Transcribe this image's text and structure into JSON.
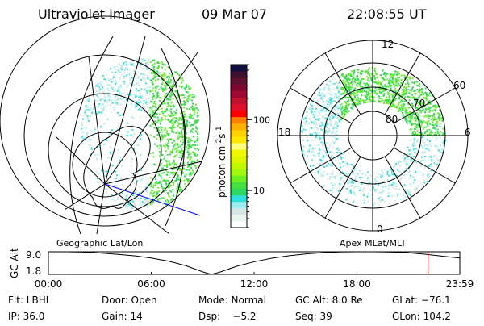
{
  "header": {
    "instrument": "Ultraviolet Imager",
    "date": "09 Mar 07",
    "time": "22:08:55 UT"
  },
  "colorbar": {
    "label_main": "photon cm",
    "label_exp1": "-2",
    "label_s": "s",
    "label_exp2": "-1",
    "scale": "log",
    "range": [
      3,
      600
    ],
    "ticks": [
      "10",
      "100"
    ],
    "tick_values": [
      10,
      100
    ],
    "colors": [
      "#ffffff",
      "#eaf4ee",
      "#d6e6e4",
      "#9ceef0",
      "#2ee0d8",
      "#2ed860",
      "#44e040",
      "#6cf020",
      "#a0f810",
      "#c0f800",
      "#e0f400",
      "#f0f800",
      "#ffff80",
      "#ffe800",
      "#ffd000",
      "#ffb000",
      "#ff8000",
      "#ff0000",
      "#e0102a",
      "#c01030",
      "#a00830",
      "#800830",
      "#601030",
      "#401030",
      "#101040"
    ]
  },
  "left_map": {
    "projection": "Geographic Lat/Lon",
    "track_color": "#0000ff"
  },
  "right_map": {
    "projection": "Apex MLat/MLT",
    "mlt_labels": {
      "top": "12",
      "bottom": "0",
      "left": "18",
      "right": "6"
    },
    "lat_labels": [
      "60",
      "70",
      "80"
    ]
  },
  "chart_data": {
    "type": "line",
    "title": "",
    "ylabel": "GC Alt",
    "yticks": [
      "9.0",
      "1.8"
    ],
    "ylim": [
      1.8,
      9.0
    ],
    "xticks": [
      "00:00",
      "06:00",
      "12:00",
      "18:00",
      "23:59"
    ],
    "xlim": [
      0,
      24
    ],
    "x": [
      0,
      1,
      2,
      3,
      4,
      5,
      6,
      7,
      8,
      9,
      9.5,
      10,
      11,
      12,
      13,
      14,
      15,
      16,
      17,
      18,
      19,
      20,
      21,
      22,
      23,
      24
    ],
    "values": [
      9.0,
      9.0,
      8.9,
      8.6,
      8.2,
      7.7,
      7.0,
      6.0,
      4.6,
      2.6,
      1.8,
      2.5,
      4.4,
      5.8,
      6.9,
      7.7,
      8.3,
      8.7,
      8.95,
      9.0,
      9.0,
      8.9,
      8.7,
      8.2,
      7.6,
      7.0
    ],
    "current_time_hours": 22.15,
    "current_marker_color": "#ff0000"
  },
  "info": {
    "row1": [
      "Flt: LBHL",
      "Door: Open",
      "Mode: Normal",
      "GC Alt: 8.0 Re",
      "GLat: −76.1"
    ],
    "row2": [
      "IP: 36.0",
      "Gain: 14",
      "Dsp:    −5.2",
      "Seq: 39",
      "GLon: 104.2"
    ]
  }
}
